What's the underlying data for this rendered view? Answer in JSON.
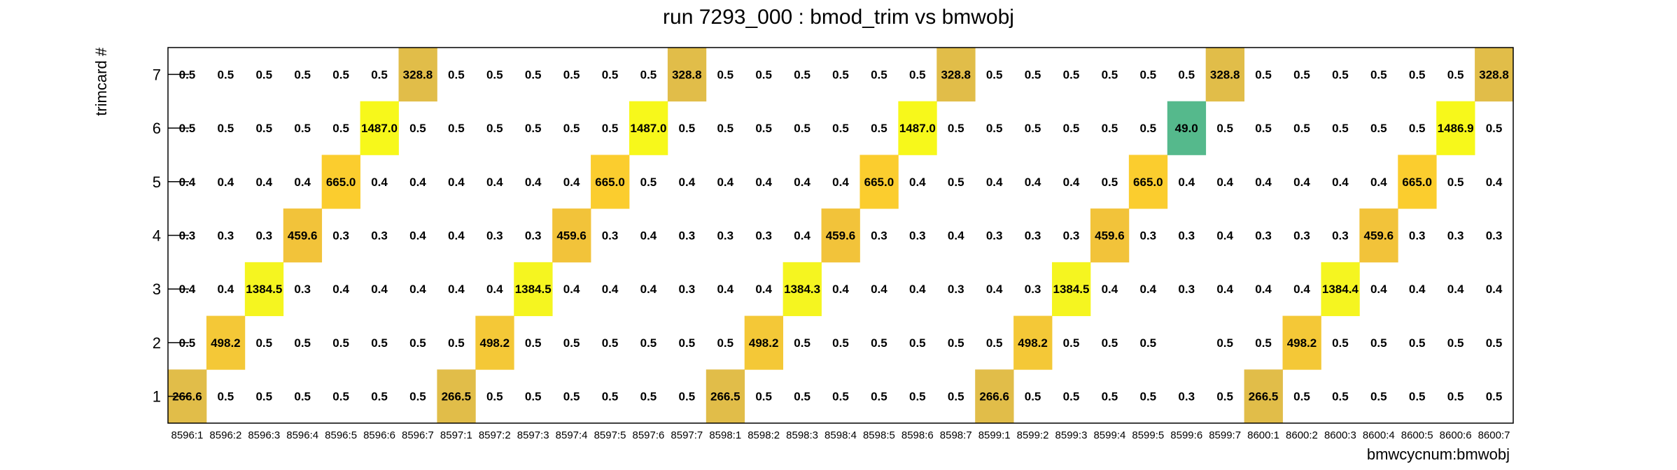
{
  "chart_data": {
    "type": "heatmap",
    "title": "run 7293_000 : bmod_trim vs bmwobj",
    "xlabel": "bmwcycnum:bmwobj",
    "ylabel": "trimcard #",
    "x_categories": [
      "8596:1",
      "8596:2",
      "8596:3",
      "8596:4",
      "8596:5",
      "8596:6",
      "8596:7",
      "8597:1",
      "8597:2",
      "8597:3",
      "8597:4",
      "8597:5",
      "8597:6",
      "8597:7",
      "8598:1",
      "8598:2",
      "8598:3",
      "8598:4",
      "8598:5",
      "8598:6",
      "8598:7",
      "8599:1",
      "8599:2",
      "8599:3",
      "8599:4",
      "8599:5",
      "8599:6",
      "8599:7",
      "8600:1",
      "8600:2",
      "8600:3",
      "8600:4",
      "8600:5",
      "8600:6",
      "8600:7"
    ],
    "y_categories": [
      "1",
      "2",
      "3",
      "4",
      "5",
      "6",
      "7"
    ],
    "grid": false,
    "values": [
      [
        "266.6",
        "0.5",
        "0.5",
        "0.5",
        "0.5",
        "0.5",
        "0.5",
        "266.5",
        "0.5",
        "0.5",
        "0.5",
        "0.5",
        "0.5",
        "0.5",
        "266.5",
        "0.5",
        "0.5",
        "0.5",
        "0.5",
        "0.5",
        "0.5",
        "266.6",
        "0.5",
        "0.5",
        "0.5",
        "0.5",
        "0.3",
        "0.5",
        "266.5",
        "0.5",
        "0.5",
        "0.5",
        "0.5",
        "0.5",
        "0.5"
      ],
      [
        "0.5",
        "498.2",
        "0.5",
        "0.5",
        "0.5",
        "0.5",
        "0.5",
        "0.5",
        "498.2",
        "0.5",
        "0.5",
        "0.5",
        "0.5",
        "0.5",
        "0.5",
        "498.2",
        "0.5",
        "0.5",
        "0.5",
        "0.5",
        "0.5",
        "0.5",
        "498.2",
        "0.5",
        "0.5",
        "0.5",
        null,
        "0.5",
        "0.5",
        "498.2",
        "0.5",
        "0.5",
        "0.5",
        "0.5",
        "0.5"
      ],
      [
        "0.4",
        "0.4",
        "1384.5",
        "0.3",
        "0.4",
        "0.4",
        "0.4",
        "0.4",
        "0.4",
        "1384.5",
        "0.4",
        "0.4",
        "0.4",
        "0.3",
        "0.4",
        "0.4",
        "1384.3",
        "0.4",
        "0.4",
        "0.4",
        "0.3",
        "0.4",
        "0.3",
        "1384.5",
        "0.4",
        "0.4",
        "0.3",
        "0.4",
        "0.4",
        "0.4",
        "1384.4",
        "0.4",
        "0.4",
        "0.4",
        "0.4"
      ],
      [
        "0.3",
        "0.3",
        "0.3",
        "459.6",
        "0.3",
        "0.3",
        "0.4",
        "0.4",
        "0.3",
        "0.3",
        "459.6",
        "0.3",
        "0.4",
        "0.3",
        "0.3",
        "0.3",
        "0.4",
        "459.6",
        "0.3",
        "0.3",
        "0.4",
        "0.3",
        "0.3",
        "0.3",
        "459.6",
        "0.3",
        "0.3",
        "0.4",
        "0.3",
        "0.3",
        "0.3",
        "459.6",
        "0.3",
        "0.3",
        "0.3"
      ],
      [
        "0.4",
        "0.4",
        "0.4",
        "0.4",
        "665.0",
        "0.4",
        "0.4",
        "0.4",
        "0.4",
        "0.4",
        "0.4",
        "665.0",
        "0.5",
        "0.4",
        "0.4",
        "0.4",
        "0.4",
        "0.4",
        "665.0",
        "0.4",
        "0.5",
        "0.4",
        "0.4",
        "0.4",
        "0.5",
        "665.0",
        "0.4",
        "0.4",
        "0.4",
        "0.4",
        "0.4",
        "0.4",
        "665.0",
        "0.5",
        "0.4"
      ],
      [
        "0.5",
        "0.5",
        "0.5",
        "0.5",
        "0.5",
        "1487.0",
        "0.5",
        "0.5",
        "0.5",
        "0.5",
        "0.5",
        "0.5",
        "1487.0",
        "0.5",
        "0.5",
        "0.5",
        "0.5",
        "0.5",
        "0.5",
        "1487.0",
        "0.5",
        "0.5",
        "0.5",
        "0.5",
        "0.5",
        "0.5",
        "49.0",
        "0.5",
        "0.5",
        "0.5",
        "0.5",
        "0.5",
        "0.5",
        "1486.9",
        "0.5"
      ],
      [
        "0.5",
        "0.5",
        "0.5",
        "0.5",
        "0.5",
        "0.5",
        "328.8",
        "0.5",
        "0.5",
        "0.5",
        "0.5",
        "0.5",
        "0.5",
        "328.8",
        "0.5",
        "0.5",
        "0.5",
        "0.5",
        "0.5",
        "0.5",
        "328.8",
        "0.5",
        "0.5",
        "0.5",
        "0.5",
        "0.5",
        "0.5",
        "328.8",
        "0.5",
        "0.5",
        "0.5",
        "0.5",
        "0.5",
        "0.5",
        "328.8"
      ]
    ],
    "colors": {
      "49.0": "#55b98c",
      "266.5": "#e1bd49",
      "266.6": "#e1bd49",
      "328.8": "#e1bd49",
      "459.6": "#f2c33a",
      "498.2": "#f4c837",
      "665.0": "#fbcd2e",
      "1384.3": "#f5f520",
      "1384.4": "#f5f520",
      "1384.5": "#f5f520",
      "1486.9": "#f7f81b",
      "1487.0": "#f7f81b"
    }
  }
}
